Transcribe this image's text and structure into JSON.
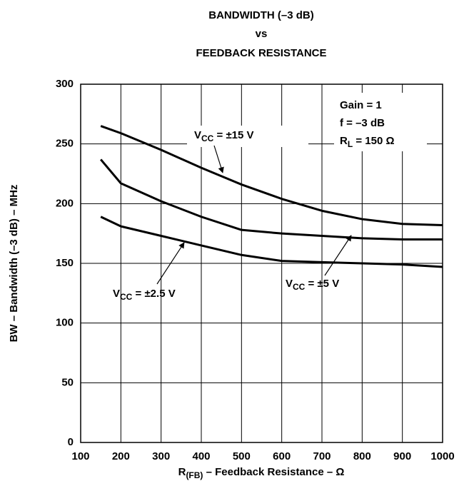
{
  "chart_data": {
    "type": "line",
    "title": [
      "BANDWIDTH (–3 dB)",
      "vs",
      "FEEDBACK RESISTANCE"
    ],
    "x_label": "R(FB) – Feedback Resistance – Ω",
    "y_label": "BW – Bandwidth (–3 dB) – MHz",
    "annotations": [
      "Gain = 1",
      "f = –3 dB",
      "RL = 150 Ω"
    ],
    "x": [
      150,
      200,
      300,
      400,
      500,
      600,
      700,
      800,
      900,
      1000
    ],
    "series": [
      {
        "name": "VCC = ±15 V",
        "color": "#000000",
        "values": [
          265,
          259,
          245,
          230,
          216,
          204,
          194,
          187,
          183,
          182
        ]
      },
      {
        "name": "VCC = ±5 V",
        "color": "#000000",
        "values": [
          237,
          217,
          202,
          189,
          178,
          175,
          173,
          171,
          170,
          170
        ]
      },
      {
        "name": "VCC = ±2.5 V",
        "color": "#000000",
        "values": [
          189,
          181,
          173,
          165,
          157,
          152,
          151,
          150,
          149,
          147
        ]
      }
    ],
    "xlim": [
      100,
      1000
    ],
    "xticks": [
      100,
      200,
      300,
      400,
      500,
      600,
      700,
      800,
      900,
      1000
    ],
    "ylim": [
      0,
      300
    ],
    "yticks": [
      0,
      50,
      100,
      150,
      200,
      250,
      300
    ],
    "grid": true
  }
}
